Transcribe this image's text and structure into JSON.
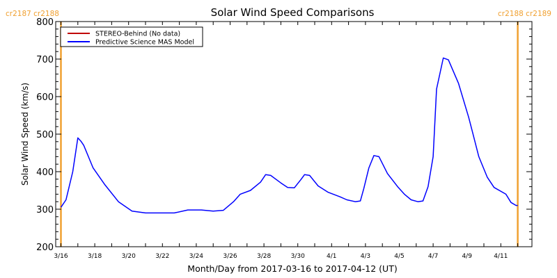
{
  "chart_data": {
    "type": "line",
    "title": "Solar Wind Speed Comparisons",
    "xlabel": "Month/Day from 2017-03-16 to 2017-04-12 (UT)",
    "ylabel": "Solar Wind Speed (km/s)",
    "ylim": [
      200,
      800
    ],
    "xlim_days": [
      -0.3,
      27.7
    ],
    "yticks": [
      "200",
      "300",
      "400",
      "500",
      "600",
      "700",
      "800"
    ],
    "xticks": [
      {
        "day": 0,
        "label": "3/16"
      },
      {
        "day": 2,
        "label": "3/18"
      },
      {
        "day": 4,
        "label": "3/20"
      },
      {
        "day": 6,
        "label": "3/22"
      },
      {
        "day": 8,
        "label": "3/24"
      },
      {
        "day": 10,
        "label": "3/26"
      },
      {
        "day": 12,
        "label": "3/28"
      },
      {
        "day": 14,
        "label": "3/30"
      },
      {
        "day": 16,
        "label": "4/1"
      },
      {
        "day": 18,
        "label": "4/3"
      },
      {
        "day": 20,
        "label": "4/5"
      },
      {
        "day": 22,
        "label": "4/7"
      },
      {
        "day": 24,
        "label": "4/9"
      },
      {
        "day": 26,
        "label": "4/11"
      }
    ],
    "legend": {
      "position": "top-left",
      "entries": [
        {
          "label": "STEREO-Behind (No data)",
          "color": "#c00000"
        },
        {
          "label": "Predictive Science MAS Model",
          "color": "#0000ff"
        }
      ]
    },
    "carrington_markers": [
      {
        "day": 0,
        "label": "cr2187 cr2188",
        "color": "#f0a030"
      },
      {
        "day": 27,
        "label": "cr2188 cr2189",
        "color": "#f0a030"
      }
    ],
    "series": [
      {
        "name": "Predictive Science MAS Model",
        "color": "#0000ff",
        "x": [
          0,
          0.3,
          0.7,
          1.0,
          1.2,
          1.35,
          1.9,
          2.6,
          3.4,
          4.2,
          5.0,
          5.9,
          6.7,
          7.5,
          8.3,
          9.0,
          9.6,
          10.2,
          10.6,
          11.2,
          11.8,
          12.1,
          12.4,
          13.0,
          13.4,
          13.8,
          14.2,
          14.4,
          14.7,
          15.2,
          15.8,
          16.5,
          16.9,
          17.4,
          17.7,
          17.9,
          18.2,
          18.5,
          18.8,
          19.3,
          19.9,
          20.3,
          20.7,
          21.1,
          21.4,
          21.7,
          22.0,
          22.2,
          22.6,
          22.9,
          23.5,
          24.1,
          24.3,
          24.7,
          25.2,
          25.6,
          26.3,
          26.6,
          26.9,
          27.0
        ],
        "y": [
          305,
          325,
          400,
          490,
          480,
          470,
          410,
          365,
          320,
          295,
          290,
          290,
          290,
          298,
          298,
          295,
          297,
          320,
          340,
          350,
          372,
          392,
          390,
          370,
          358,
          357,
          380,
          392,
          390,
          362,
          345,
          333,
          325,
          320,
          322,
          355,
          410,
          443,
          440,
          395,
          360,
          340,
          325,
          320,
          322,
          360,
          440,
          620,
          703,
          698,
          635,
          545,
          510,
          440,
          385,
          358,
          340,
          318,
          310,
          310
        ]
      },
      {
        "name": "STEREO-Behind (No data)",
        "color": "#c00000",
        "x": [],
        "y": []
      }
    ]
  }
}
